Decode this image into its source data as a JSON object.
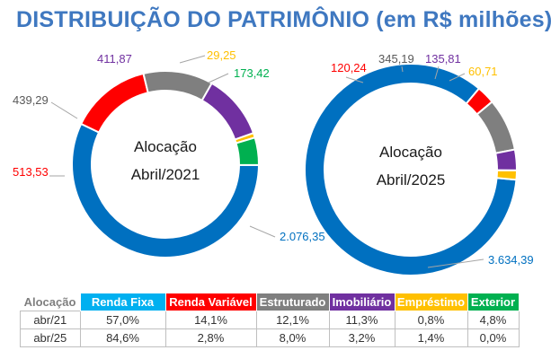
{
  "title": "DISTRIBUIÇÃO DO PATRIMÔNIO (em R$ milhões)",
  "chart_data": [
    {
      "type": "pie",
      "center_label": [
        "Alocação",
        "Abril/2021"
      ],
      "categories": [
        "Renda Fixa",
        "Renda Variável",
        "Estruturado",
        "Imobiliário",
        "Empréstimo",
        "Exterior"
      ],
      "values": [
        2076.35,
        513.53,
        439.29,
        411.87,
        29.25,
        173.42
      ],
      "value_labels": [
        "2.076,35",
        "513,53",
        "439,29",
        "411,87",
        "29,25",
        "173,42"
      ]
    },
    {
      "type": "pie",
      "center_label": [
        "Alocação",
        "Abril/2025"
      ],
      "categories": [
        "Renda Fixa",
        "Renda Variável",
        "Estruturado",
        "Imobiliário",
        "Empréstimo",
        "Exterior"
      ],
      "values": [
        3634.39,
        120.24,
        345.19,
        135.81,
        60.71,
        0
      ],
      "value_labels": [
        "3.634,39",
        "120,24",
        "345,19",
        "135,81",
        "60,71",
        ""
      ]
    }
  ],
  "colors": {
    "Renda Fixa": "#0070c0",
    "Renda Variável": "#ff0000",
    "Estruturado": "#7f7f7f",
    "Imobiliário": "#7030a0",
    "Empréstimo": "#ffc000",
    "Exterior": "#00b050"
  },
  "table": {
    "header_first": "Alocação",
    "columns": [
      {
        "label": "Renda Fixa",
        "color": "#00b0f0"
      },
      {
        "label": "Renda Variável",
        "color": "#ff0000"
      },
      {
        "label": "Estruturado",
        "color": "#7f7f7f"
      },
      {
        "label": "Imobiliário",
        "color": "#7030a0"
      },
      {
        "label": "Empréstimo",
        "color": "#ffc000"
      },
      {
        "label": "Exterior",
        "color": "#00b050"
      }
    ],
    "rows": [
      {
        "label": "abr/21",
        "cells": [
          "57,0%",
          "14,1%",
          "12,1%",
          "11,3%",
          "0,8%",
          "4,8%"
        ]
      },
      {
        "label": "abr/25",
        "cells": [
          "84,6%",
          "2,8%",
          "8,0%",
          "3,2%",
          "1,4%",
          "0,0%"
        ]
      }
    ]
  }
}
